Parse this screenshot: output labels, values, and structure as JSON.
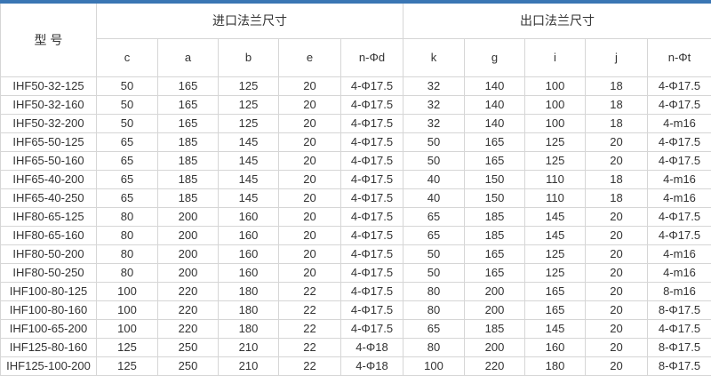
{
  "colors": {
    "accent_bar": "#3a76b4",
    "border": "#d6d6d6",
    "text": "#333333"
  },
  "table": {
    "model_header": "型 号",
    "groups": [
      {
        "label": "进口法兰尺寸"
      },
      {
        "label": "出口法兰尺寸"
      }
    ],
    "sub_headers": [
      "c",
      "a",
      "b",
      "e",
      "n-Φd",
      "k",
      "g",
      "i",
      "j",
      "n-Φt"
    ],
    "rows": [
      [
        "IHF50-32-125",
        "50",
        "165",
        "125",
        "20",
        "4-Φ17.5",
        "32",
        "140",
        "100",
        "18",
        "4-Φ17.5"
      ],
      [
        "IHF50-32-160",
        "50",
        "165",
        "125",
        "20",
        "4-Φ17.5",
        "32",
        "140",
        "100",
        "18",
        "4-Φ17.5"
      ],
      [
        "IHF50-32-200",
        "50",
        "165",
        "125",
        "20",
        "4-Φ17.5",
        "32",
        "140",
        "100",
        "18",
        "4-m16"
      ],
      [
        "IHF65-50-125",
        "65",
        "185",
        "145",
        "20",
        "4-Φ17.5",
        "50",
        "165",
        "125",
        "20",
        "4-Φ17.5"
      ],
      [
        "IHF65-50-160",
        "65",
        "185",
        "145",
        "20",
        "4-Φ17.5",
        "50",
        "165",
        "125",
        "20",
        "4-Φ17.5"
      ],
      [
        "IHF65-40-200",
        "65",
        "185",
        "145",
        "20",
        "4-Φ17.5",
        "40",
        "150",
        "110",
        "18",
        "4-m16"
      ],
      [
        "IHF65-40-250",
        "65",
        "185",
        "145",
        "20",
        "4-Φ17.5",
        "40",
        "150",
        "110",
        "18",
        "4-m16"
      ],
      [
        "IHF80-65-125",
        "80",
        "200",
        "160",
        "20",
        "4-Φ17.5",
        "65",
        "185",
        "145",
        "20",
        "4-Φ17.5"
      ],
      [
        "IHF80-65-160",
        "80",
        "200",
        "160",
        "20",
        "4-Φ17.5",
        "65",
        "185",
        "145",
        "20",
        "4-Φ17.5"
      ],
      [
        "IHF80-50-200",
        "80",
        "200",
        "160",
        "20",
        "4-Φ17.5",
        "50",
        "165",
        "125",
        "20",
        "4-m16"
      ],
      [
        "IHF80-50-250",
        "80",
        "200",
        "160",
        "20",
        "4-Φ17.5",
        "50",
        "165",
        "125",
        "20",
        "4-m16"
      ],
      [
        "IHF100-80-125",
        "100",
        "220",
        "180",
        "22",
        "4-Φ17.5",
        "80",
        "200",
        "165",
        "20",
        "8-m16"
      ],
      [
        "IHF100-80-160",
        "100",
        "220",
        "180",
        "22",
        "4-Φ17.5",
        "80",
        "200",
        "165",
        "20",
        "8-Φ17.5"
      ],
      [
        "IHF100-65-200",
        "100",
        "220",
        "180",
        "22",
        "4-Φ17.5",
        "65",
        "185",
        "145",
        "20",
        "4-Φ17.5"
      ],
      [
        "IHF125-80-160",
        "125",
        "250",
        "210",
        "22",
        "4-Φ18",
        "80",
        "200",
        "160",
        "20",
        "8-Φ17.5"
      ],
      [
        "IHF125-100-200",
        "125",
        "250",
        "210",
        "22",
        "4-Φ18",
        "100",
        "220",
        "180",
        "20",
        "8-Φ17.5"
      ]
    ]
  }
}
